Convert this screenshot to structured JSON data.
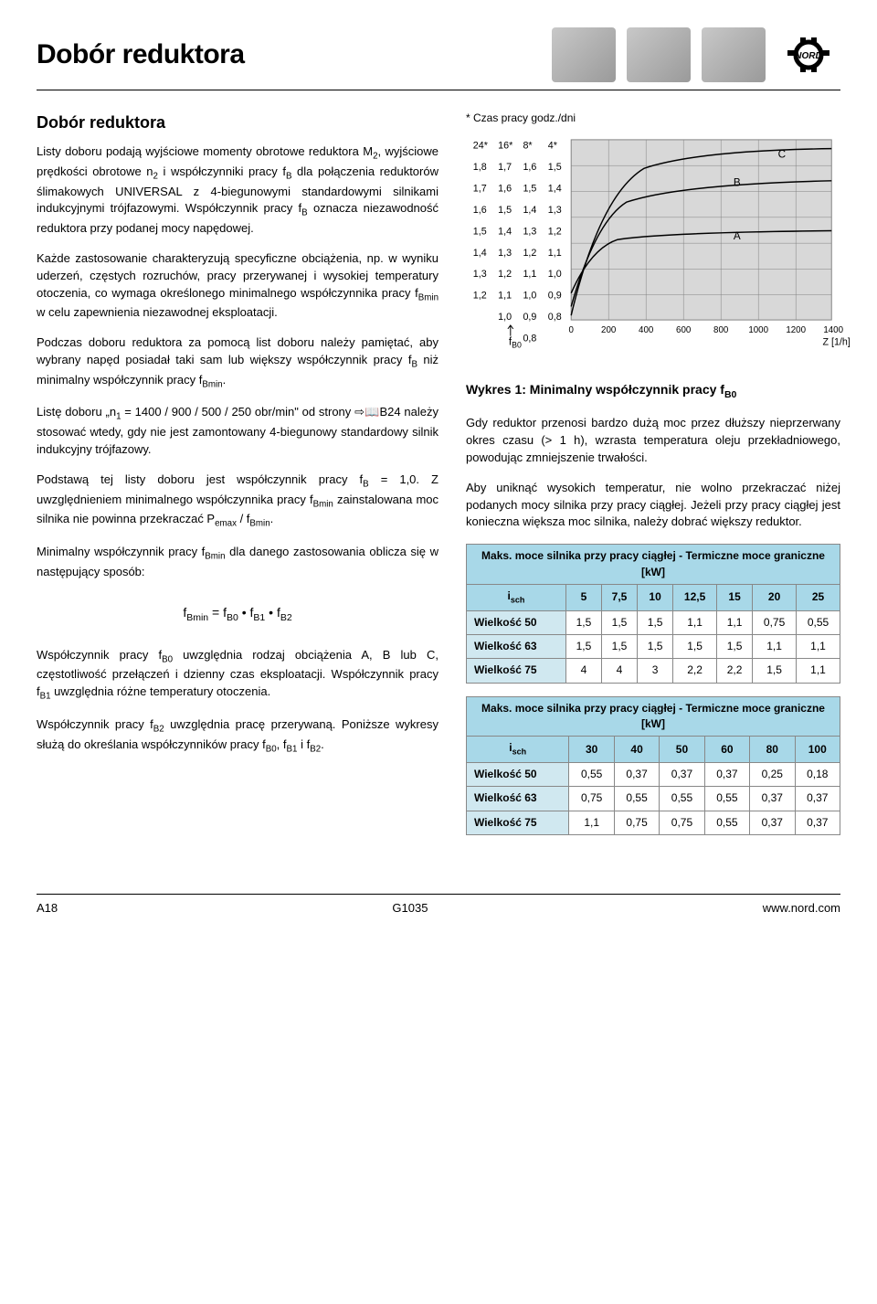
{
  "header": {
    "title": "Dobór reduktora"
  },
  "left": {
    "h2": "Dobór reduktora",
    "p1a": "Listy doboru podają wyjściowe momenty obrotowe reduktora M",
    "p1b": ", wyjściowe prędkości obrotowe n",
    "p1c": " i współczynniki pracy f",
    "p1d": " dla połączenia reduktorów ślimakowych UNIVERSAL z 4-biegunowymi standardowymi silnikami indukcyjnymi trójfazowymi. Współczynnik pracy f",
    "p1e": " oznacza niezawodność reduktora przy podanej mocy napędowej.",
    "p2a": "Każde zastosowanie charakteryzują specyficzne obciążenia, np. w wyniku uderzeń, częstych rozruchów, pracy przerywanej i wysokiej temperatury otoczenia, co wymaga określonego minimalnego współczynnika pracy f",
    "p2b": " w celu zapewnienia niezawodnej eksploatacji.",
    "p3a": "Podczas doboru reduktora za pomocą list doboru należy pamiętać, aby wybrany napęd posiadał taki sam lub większy współczynnik pracy f",
    "p3b": " niż minimalny współczynnik pracy f",
    "p3c": ".",
    "p4a": "Listę doboru „n",
    "p4b": " = 1400 / 900 / 500 / 250 obr/min\" od strony ",
    "p4c": "B24 należy stosować wtedy, gdy nie jest zamontowany 4-biegunowy standardowy silnik indukcyjny trójfazowy.",
    "p5a": "Podstawą tej listy doboru jest współczynnik pracy f",
    "p5b": " = 1,0. Z uwzględnieniem minimalnego współczynnika pracy f",
    "p5c": " zainstalowana moc silnika nie powinna przekraczać P",
    "p5d": " / f",
    "p5e": ".",
    "p6a": "Minimalny współczynnik pracy f",
    "p6b": " dla danego zastosowania oblicza się w następujący sposób:",
    "formula_a": "f",
    "formula_b": " = f",
    "formula_c": " • f",
    "formula_d": " • f",
    "p7a": "Współczynnik pracy f",
    "p7b": " uwzględnia rodzaj obciążenia A, B lub C, częstotliwość przełączeń i dzienny czas eksploatacji. Współczynnik pracy f",
    "p7c": " uwzględnia różne temperatury otoczenia.",
    "p8a": "Współczynnik pracy f",
    "p8b": " uwzględnia pracę przerywaną. Poniższe wykresy służą do określania współczynników pracy f",
    "p8c": ", f",
    "p8d": " i f",
    "p8e": "."
  },
  "chart": {
    "title": "* Czas pracy godz./dni",
    "caption_a": "Wykres 1: Minimalny współczynnik pracy f",
    "caption_sub": "B0",
    "fb0": "f",
    "fb0sub": "B0",
    "zlabel": "Z [1/h]",
    "left_cols": [
      [
        "24*",
        "1,8",
        "1,7",
        "1,6",
        "1,5",
        "1,4",
        "1,3",
        "1,2"
      ],
      [
        "16*",
        "1,7",
        "1,6",
        "1,5",
        "1,4",
        "1,3",
        "1,2",
        "1,1",
        "1,0"
      ],
      [
        "8*",
        "1,6",
        "1,5",
        "1,4",
        "1,3",
        "1,2",
        "1,1",
        "1,0",
        "0,9",
        "0,8"
      ],
      [
        "4*",
        "1,5",
        "1,4",
        "1,3",
        "1,2",
        "1,1",
        "1,0",
        "0,9",
        "0,8"
      ]
    ],
    "xticks": [
      "0",
      "200",
      "400",
      "600",
      "800",
      "1000",
      "1200",
      "1400"
    ],
    "curves": {
      "A": "A",
      "B": "B",
      "C": "C"
    },
    "bg": "#d8d8d8",
    "grid": "#808080",
    "line": "#000"
  },
  "right": {
    "p1": "Gdy reduktor przenosi bardzo dużą moc przez dłuższy nieprzerwany okres czasu (> 1 h), wzrasta temperatura oleju przekładniowego, powodując zmniejszenie trwałości.",
    "p2": "Aby uniknąć wysokich temperatur, nie wolno przekraczać niżej podanych mocy silnika przy pracy ciągłej. Jeżeli przy pracy ciągłej jest konieczna większa moc silnika, należy dobrać większy reduktor."
  },
  "table1": {
    "title": "Maks. moce silnika przy pracy ciągłej - Termiczne moce graniczne [kW]",
    "col0": "i",
    "col0sub": "sch",
    "cols": [
      "5",
      "7,5",
      "10",
      "12,5",
      "15",
      "20",
      "25"
    ],
    "rows": [
      {
        "lbl": "Wielkość 50",
        "v": [
          "1,5",
          "1,5",
          "1,5",
          "1,1",
          "1,1",
          "0,75",
          "0,55"
        ]
      },
      {
        "lbl": "Wielkość 63",
        "v": [
          "1,5",
          "1,5",
          "1,5",
          "1,5",
          "1,5",
          "1,1",
          "1,1"
        ]
      },
      {
        "lbl": "Wielkość 75",
        "v": [
          "4",
          "4",
          "3",
          "2,2",
          "2,2",
          "1,5",
          "1,1"
        ]
      }
    ]
  },
  "table2": {
    "title": "Maks. moce silnika przy pracy ciągłej - Termiczne moce graniczne [kW]",
    "col0": "i",
    "col0sub": "sch",
    "cols": [
      "30",
      "40",
      "50",
      "60",
      "80",
      "100"
    ],
    "rows": [
      {
        "lbl": "Wielkość 50",
        "v": [
          "0,55",
          "0,37",
          "0,37",
          "0,37",
          "0,25",
          "0,18"
        ]
      },
      {
        "lbl": "Wielkość 63",
        "v": [
          "0,75",
          "0,55",
          "0,55",
          "0,55",
          "0,37",
          "0,37"
        ]
      },
      {
        "lbl": "Wielkość 75",
        "v": [
          "1,1",
          "0,75",
          "0,75",
          "0,55",
          "0,37",
          "0,37"
        ]
      }
    ]
  },
  "footer": {
    "left": "A18",
    "center": "G1035",
    "right": "www.nord.com"
  }
}
